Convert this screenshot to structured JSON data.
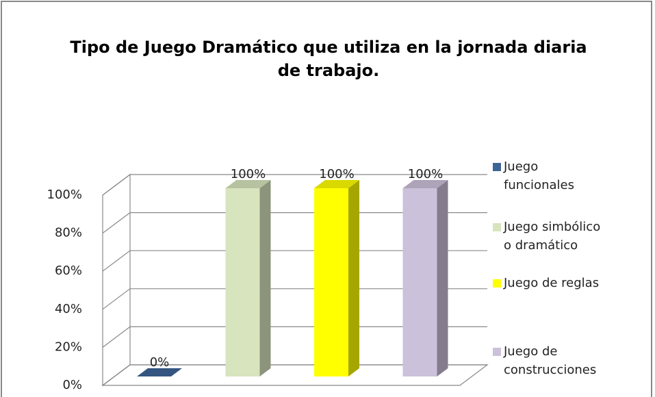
{
  "chart_data": {
    "type": "bar3d",
    "title": "Tipo de Juego Dramático que utiliza en la jornada diaria de trabajo.",
    "categories": [
      null
    ],
    "series": [
      {
        "name": "Juego funcionales",
        "color": "#3d6496",
        "values": [
          0
        ],
        "value_labels": [
          "0%"
        ]
      },
      {
        "name": "Juego simbólico o dramático",
        "color": "#d7e4bd",
        "values": [
          100
        ],
        "value_labels": [
          "100%"
        ]
      },
      {
        "name": "Juego de reglas",
        "color": "#ffff00",
        "values": [
          100
        ],
        "value_labels": [
          "100%"
        ]
      },
      {
        "name": "Juego de construcciones",
        "color": "#ccc1da",
        "values": [
          100
        ],
        "value_labels": [
          "100%"
        ]
      }
    ],
    "ylim": [
      0,
      100
    ],
    "yticks": [
      {
        "value": 0,
        "label": "0%"
      },
      {
        "value": 20,
        "label": "20%"
      },
      {
        "value": 40,
        "label": "40%"
      },
      {
        "value": 60,
        "label": "60%"
      },
      {
        "value": 80,
        "label": "80%"
      },
      {
        "value": 100,
        "label": "100%"
      }
    ],
    "grid": true,
    "legend": "right"
  }
}
